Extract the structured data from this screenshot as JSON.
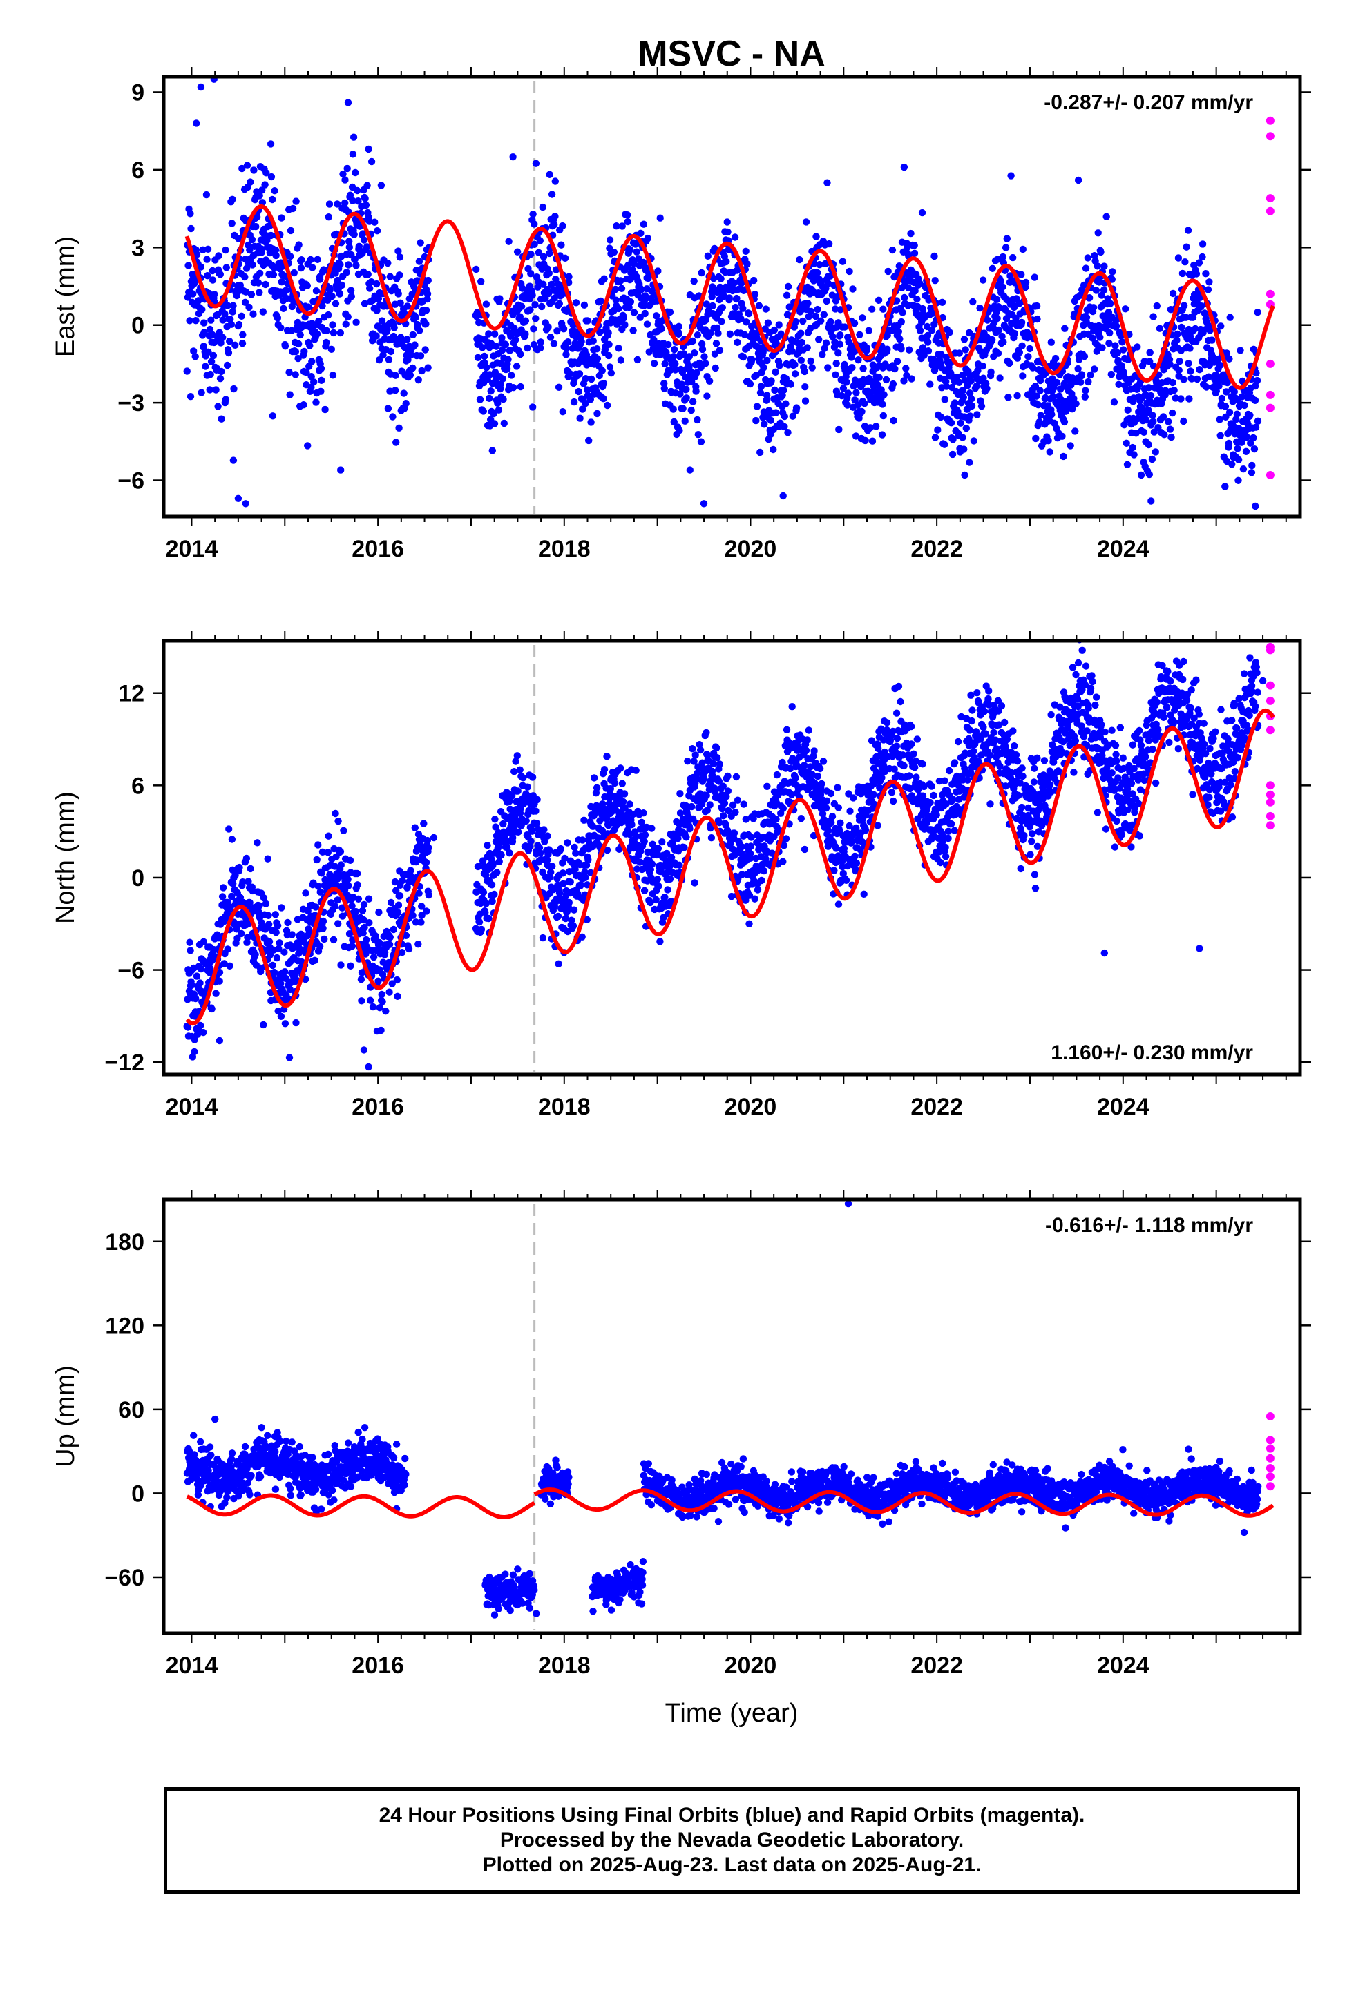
{
  "title": "MSVC - NA",
  "xlabel": "Time (year)",
  "caption": [
    "24 Hour Positions Using Final Orbits (blue) and Rapid Orbits (magenta).",
    "Processed by the Nevada Geodetic Laboratory.",
    "Plotted on 2025-Aug-23. Last data on 2025-Aug-21."
  ],
  "colors": {
    "final_orbits": "#0000ff",
    "rapid_orbits": "#ff00ff",
    "model_fit": "#ff0000",
    "step_marker": "#bbbbbb"
  },
  "chart_data": [
    {
      "type": "scatter",
      "ylabel": "East (mm)",
      "annotation": "-0.287+/- 0.207 mm/yr",
      "annotation_position": "top-right",
      "xlim": [
        2013.7,
        2025.9
      ],
      "ylim": [
        -7.4,
        9.6
      ],
      "xticks": [
        "2014",
        "2016",
        "2018",
        "2020",
        "2022",
        "2024"
      ],
      "yticks": [
        "9",
        "6",
        "3",
        "0",
        "-3",
        "-6"
      ],
      "step_year": 2017.68,
      "fit": {
        "rate": -0.287,
        "value_2014": 2.8,
        "annual_amplitude": 2.0,
        "annual_peak": 0.75,
        "segments": [
          [
            2013.95,
            2017.68
          ],
          [
            2017.68,
            2025.61
          ]
        ]
      },
      "series": [
        {
          "name": "Final Orbits (blue)",
          "segments": [
            {
              "start": 2013.95,
              "end": 2016.55,
              "center": 2.0,
              "trend": -0.287,
              "amp": 2.0,
              "peak": 0.75,
              "spread": 1.6
            },
            {
              "start": 2017.05,
              "end": 2017.68,
              "center": 1.2,
              "trend": -0.287,
              "amp": 2.0,
              "peak": 0.75,
              "spread": 1.3
            },
            {
              "start": 2017.68,
              "end": 2025.45,
              "center": 1.5,
              "trend": -0.287,
              "amp": 2.0,
              "peak": 0.75,
              "spread": 1.3
            }
          ],
          "points": [
            [
              2014.05,
              7.8
            ],
            [
              2014.1,
              9.2
            ],
            [
              2014.24,
              9.5
            ],
            [
              2014.5,
              -6.7
            ],
            [
              2014.58,
              -6.9
            ],
            [
              2014.85,
              7.0
            ],
            [
              2015.68,
              8.6
            ],
            [
              2015.6,
              -5.6
            ],
            [
              2015.9,
              6.8
            ],
            [
              2017.45,
              6.5
            ],
            [
              2019.35,
              -5.6
            ],
            [
              2019.5,
              -6.9
            ],
            [
              2020.35,
              -6.6
            ],
            [
              2021.65,
              6.1
            ],
            [
              2022.3,
              -5.8
            ],
            [
              2023.52,
              5.6
            ],
            [
              2024.3,
              -6.8
            ],
            [
              2025.38,
              -5.7
            ],
            [
              2025.42,
              -7.0
            ]
          ]
        },
        {
          "name": "Rapid Orbits (magenta)",
          "points": [
            [
              2025.58,
              7.9
            ],
            [
              2025.58,
              7.3
            ],
            [
              2025.58,
              4.9
            ],
            [
              2025.58,
              4.4
            ],
            [
              2025.58,
              1.2
            ],
            [
              2025.58,
              0.8
            ],
            [
              2025.58,
              -1.5
            ],
            [
              2025.58,
              -2.7
            ],
            [
              2025.58,
              -3.2
            ],
            [
              2025.58,
              -5.8
            ]
          ]
        }
      ]
    },
    {
      "type": "scatter",
      "ylabel": "North (mm)",
      "annotation": "1.160+/- 0.230 mm/yr",
      "annotation_position": "bottom-right",
      "xlim": [
        2013.7,
        2025.9
      ],
      "ylim": [
        -12.8,
        15.4
      ],
      "xticks": [
        "2014",
        "2016",
        "2018",
        "2020",
        "2022",
        "2024"
      ],
      "yticks": [
        "12",
        "6",
        "0",
        "-6",
        "-12"
      ],
      "step_year": 2017.68,
      "fit": {
        "rate": 1.16,
        "value_2014": -6.0,
        "annual_amplitude": 3.5,
        "annual_peak": 0.52,
        "segments": [
          [
            2013.95,
            2017.68
          ],
          [
            2017.68,
            2025.61
          ]
        ]
      },
      "series": [
        {
          "name": "Final Orbits (blue)",
          "segments": [
            {
              "start": 2013.95,
              "end": 2016.55,
              "center": -5.0,
              "trend": 1.16,
              "amp": 3.0,
              "peak": 0.52,
              "spread": 1.7
            },
            {
              "start": 2017.05,
              "end": 2017.68,
              "center": -2.5,
              "trend": 1.16,
              "amp": 3.0,
              "peak": 0.52,
              "spread": 1.5
            },
            {
              "start": 2017.68,
              "end": 2025.45,
              "center": -3.3,
              "trend": 1.16,
              "amp": 3.0,
              "peak": 0.52,
              "spread": 1.6
            }
          ],
          "points": [
            [
              2014.3,
              -10.6
            ],
            [
              2015.05,
              -11.7
            ],
            [
              2015.9,
              -12.3
            ],
            [
              2015.85,
              -11.2
            ],
            [
              2016.6,
              2.6
            ],
            [
              2017.5,
              3.5
            ],
            [
              2021.55,
              12.3
            ],
            [
              2023.8,
              -4.9
            ],
            [
              2024.82,
              -4.6
            ],
            [
              2025.5,
              12.8
            ]
          ]
        },
        {
          "name": "Rapid Orbits (magenta)",
          "points": [
            [
              2025.58,
              15.0
            ],
            [
              2025.58,
              14.8
            ],
            [
              2025.58,
              12.5
            ],
            [
              2025.58,
              11.5
            ],
            [
              2025.58,
              10.5
            ],
            [
              2025.58,
              9.6
            ],
            [
              2025.58,
              6.0
            ],
            [
              2025.58,
              5.4
            ],
            [
              2025.58,
              4.9
            ],
            [
              2025.58,
              4.0
            ],
            [
              2025.58,
              3.4
            ]
          ]
        }
      ]
    },
    {
      "type": "scatter",
      "ylabel": "Up (mm)",
      "annotation": "-0.616+/- 1.118 mm/yr",
      "annotation_position": "top-right",
      "xlim": [
        2013.7,
        2025.9
      ],
      "ylim": [
        -100,
        210
      ],
      "xticks": [
        "2014",
        "2016",
        "2018",
        "2020",
        "2022",
        "2024"
      ],
      "yticks": [
        "180",
        "120",
        "60",
        "0",
        "-60"
      ],
      "step_year": 2017.68,
      "fit": {
        "rate": -0.616,
        "value_2014": -8.0,
        "annual_amplitude": 7.0,
        "annual_peak": 0.85,
        "segments": [
          [
            2013.95,
            2017.68
          ],
          [
            2017.68,
            2025.61
          ]
        ]
      },
      "series": [
        {
          "name": "Final Orbits (blue)",
          "segments": [
            {
              "start": 2013.95,
              "end": 2016.3,
              "center": 18.0,
              "trend": 0.0,
              "amp": 7.0,
              "peak": 0.85,
              "spread": 8.0
            },
            {
              "start": 2017.15,
              "end": 2017.68,
              "center": -67.0,
              "trend": 0.0,
              "amp": 3.0,
              "peak": 0.85,
              "spread": 6.0
            },
            {
              "start": 2017.75,
              "end": 2018.05,
              "center": 4.0,
              "trend": 0.0,
              "amp": 3.0,
              "peak": 0.85,
              "spread": 6.0
            },
            {
              "start": 2018.3,
              "end": 2018.85,
              "center": -65.0,
              "trend": 0.0,
              "amp": 3.0,
              "peak": 0.85,
              "spread": 6.0
            },
            {
              "start": 2018.85,
              "end": 2025.45,
              "center": -2.0,
              "trend": 0.5,
              "amp": 6.0,
              "peak": 0.85,
              "spread": 6.5
            }
          ],
          "points": [
            [
              2014.25,
              53.0
            ],
            [
              2014.75,
              47.0
            ],
            [
              2016.2,
              35.0
            ],
            [
              2017.7,
              -86.0
            ],
            [
              2021.05,
              207.0
            ],
            [
              2025.3,
              -28.0
            ]
          ]
        },
        {
          "name": "Rapid Orbits (magenta)",
          "points": [
            [
              2025.58,
              55.0
            ],
            [
              2025.58,
              38.0
            ],
            [
              2025.58,
              32.0
            ],
            [
              2025.58,
              25.0
            ],
            [
              2025.58,
              18.0
            ],
            [
              2025.58,
              12.0
            ],
            [
              2025.58,
              5.0
            ]
          ]
        }
      ]
    }
  ]
}
